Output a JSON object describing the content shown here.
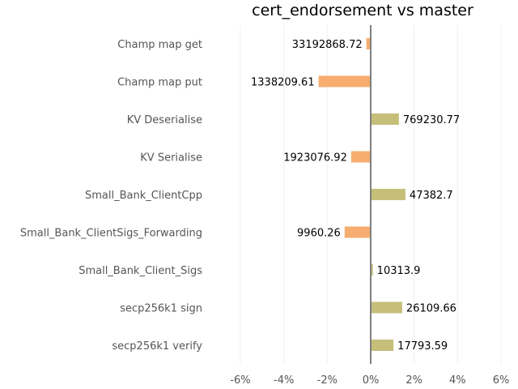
{
  "chart_data": {
    "type": "bar",
    "orientation": "horizontal",
    "title": "cert_endorsement vs master",
    "xlabel": "",
    "ylabel": "",
    "xlim": [
      -6,
      6
    ],
    "x_ticks": [
      -6,
      -4,
      -2,
      0,
      2,
      4,
      6
    ],
    "x_tick_labels": [
      "-6%",
      "-4%",
      "-2%",
      "0%",
      "2%",
      "4%",
      "6%"
    ],
    "grid": "vertical",
    "legend": "none",
    "colors": {
      "positive": "#c5bf7a",
      "negative": "#f6ad6f",
      "zero_line": "#808080"
    },
    "categories": [
      "Champ map get",
      "Champ map put",
      "KV Deserialise",
      "KV Serialise",
      "Small_Bank_ClientCpp",
      "Small_Bank_ClientSigs_Forwarding",
      "Small_Bank_Client_Sigs",
      "secp256k1 sign",
      "secp256k1 verify"
    ],
    "values": [
      -0.2,
      -2.4,
      1.3,
      -0.9,
      1.6,
      -1.2,
      0.1,
      1.45,
      1.05
    ],
    "value_labels": [
      "33192868.72",
      "1338209.61",
      "769230.77",
      "1923076.92",
      "47382.7",
      "9960.26",
      "10313.9",
      "26109.66",
      "17793.59"
    ]
  }
}
